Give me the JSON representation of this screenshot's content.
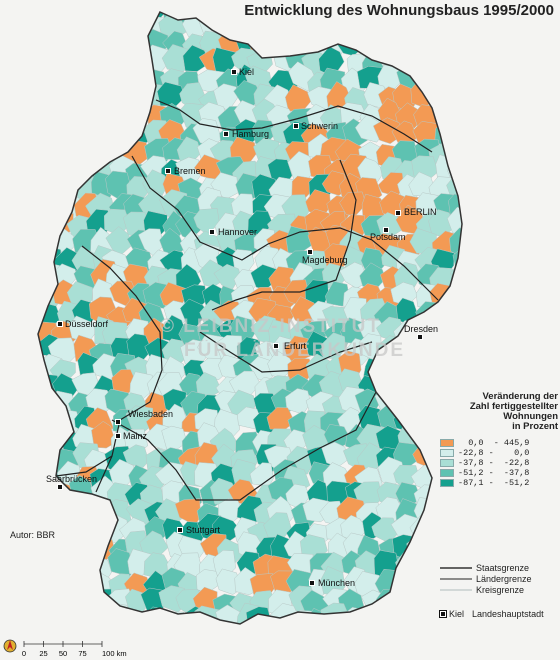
{
  "title": "Entwicklung des Wohnungsbaus 1995/2000",
  "watermark": "© LEIBNIZ-INSTITUT FÜR LÄNDERKUNDE",
  "legend": {
    "title": "Veränderung der Zahl fertiggestellter Wohnungen in Prozent",
    "title_lines": [
      "Veränderung der",
      "Zahl fertiggestellter",
      "Wohnungen",
      "in Prozent"
    ],
    "classes": [
      {
        "range": "  0,0  - 445,9",
        "color": "#f39a54"
      },
      {
        "range": "-22,8 -    0,0",
        "color": "#d3eeeb"
      },
      {
        "range": "-37,8 -  -22,8",
        "color": "#a9dfd5"
      },
      {
        "range": "-51,2 -  -37,8",
        "color": "#5ec2b1"
      },
      {
        "range": "-87,1 -  -51,2",
        "color": "#14a08e"
      }
    ]
  },
  "author": "Autor:   BBR",
  "boundaries": {
    "staatsgrenze": "Staatsgrenze",
    "laendergrenze": "Ländergrenze",
    "kreisgrenze": "Kreisgrenze"
  },
  "capital_legend": {
    "example": "Kiel",
    "label": "Landeshauptstadt"
  },
  "scale": {
    "ticks": [
      "0",
      "25",
      "50",
      "75",
      "100 km"
    ]
  },
  "cities": [
    {
      "name": "Kiel"
    },
    {
      "name": "Hamburg"
    },
    {
      "name": "Schwerin"
    },
    {
      "name": "Bremen"
    },
    {
      "name": "BERLIN"
    },
    {
      "name": "Potsdam"
    },
    {
      "name": "Hannover"
    },
    {
      "name": "Magdeburg"
    },
    {
      "name": "Düsseldorf"
    },
    {
      "name": "Erfurt"
    },
    {
      "name": "Dresden"
    },
    {
      "name": "Wiesbaden"
    },
    {
      "name": "Mainz"
    },
    {
      "name": "Saarbrücken"
    },
    {
      "name": "Stuttgart"
    },
    {
      "name": "München"
    }
  ],
  "colors": {
    "background": "#f4f4f2",
    "border": "#333333",
    "land_border": "#222222"
  }
}
